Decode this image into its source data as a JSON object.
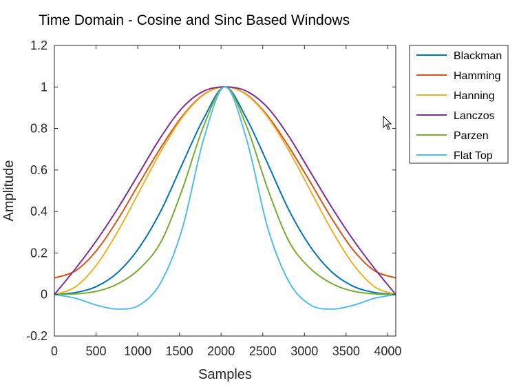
{
  "chart_data": {
    "type": "line",
    "title": "Time Domain - Cosine and Sinc Based Windows",
    "xlabel": "Samples",
    "ylabel": "Amplitude",
    "xlim": [
      0,
      4096
    ],
    "ylim": [
      -0.2,
      1.2
    ],
    "xticks": [
      0,
      500,
      1000,
      1500,
      2000,
      2500,
      3000,
      3500,
      4000
    ],
    "yticks": [
      -0.2,
      0,
      0.2,
      0.4,
      0.6,
      0.8,
      1,
      1.2
    ],
    "xtick_labels": [
      "0",
      "500",
      "1000",
      "1500",
      "2000",
      "2500",
      "3000",
      "3500",
      "4000"
    ],
    "ytick_labels": [
      "-0.2",
      "0",
      "0.2",
      "0.4",
      "0.6",
      "0.8",
      "1",
      "1.2"
    ],
    "grid": false,
    "legend_position": "outside-top-right",
    "x": [
      0,
      256,
      512,
      768,
      1024,
      1280,
      1536,
      1792,
      2048,
      2304,
      2560,
      2816,
      3072,
      3328,
      3584,
      3840,
      4096
    ],
    "series": [
      {
        "name": "Blackman",
        "color": "#0072BD",
        "values": [
          0.0,
          0.01,
          0.04,
          0.109,
          0.23,
          0.405,
          0.63,
          0.849,
          1.0,
          0.849,
          0.63,
          0.405,
          0.23,
          0.109,
          0.04,
          0.01,
          0.0
        ]
      },
      {
        "name": "Hamming",
        "color": "#D95319",
        "values": [
          0.08,
          0.115,
          0.215,
          0.366,
          0.54,
          0.71,
          0.86,
          0.964,
          1.0,
          0.964,
          0.86,
          0.71,
          0.54,
          0.366,
          0.215,
          0.115,
          0.08
        ]
      },
      {
        "name": "Hanning",
        "color": "#EDB120",
        "values": [
          0.0,
          0.038,
          0.146,
          0.309,
          0.5,
          0.691,
          0.854,
          0.962,
          1.0,
          0.962,
          0.854,
          0.691,
          0.5,
          0.309,
          0.146,
          0.038,
          0.0
        ]
      },
      {
        "name": "Lanczos",
        "color": "#7E2F8E",
        "values": [
          0.0,
          0.126,
          0.264,
          0.42,
          0.59,
          0.76,
          0.9,
          0.98,
          1.0,
          0.98,
          0.9,
          0.76,
          0.59,
          0.42,
          0.264,
          0.126,
          0.0
        ]
      },
      {
        "name": "Parzen",
        "color": "#77AC30",
        "values": [
          0.0,
          0.003,
          0.016,
          0.053,
          0.125,
          0.255,
          0.508,
          0.813,
          1.0,
          0.813,
          0.508,
          0.255,
          0.125,
          0.053,
          0.016,
          0.003,
          0.0
        ]
      },
      {
        "name": "Flat Top",
        "color": "#4DBEEE",
        "values": [
          0.0,
          -0.018,
          -0.052,
          -0.07,
          -0.05,
          0.06,
          0.32,
          0.75,
          1.0,
          0.75,
          0.32,
          0.06,
          -0.05,
          -0.07,
          -0.052,
          -0.018,
          0.0
        ]
      }
    ]
  }
}
